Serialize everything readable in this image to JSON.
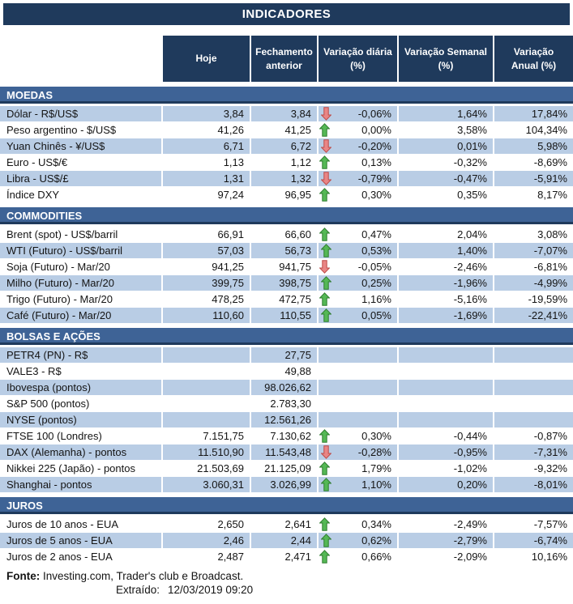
{
  "title": "INDICADORES",
  "columns": [
    "Hoje",
    "Fechamento\nanterior",
    "Variação diária\n(%)",
    "Variação Semanal\n(%)",
    "Variação\nAnual (%)"
  ],
  "sections": [
    {
      "name": "MOEDAS",
      "rows": [
        {
          "label": "Dólar - R$/US$",
          "hoje": "3,84",
          "fechamento": "3,84",
          "arrow": "down",
          "diaria": "-0,06%",
          "semanal": "1,64%",
          "anual": "17,84%"
        },
        {
          "label": "Peso argentino - $/US$",
          "hoje": "41,26",
          "fechamento": "41,25",
          "arrow": "up",
          "diaria": "0,00%",
          "semanal": "3,58%",
          "anual": "104,34%"
        },
        {
          "label": "Yuan Chinês - ¥/US$",
          "hoje": "6,71",
          "fechamento": "6,72",
          "arrow": "down",
          "diaria": "-0,20%",
          "semanal": "0,01%",
          "anual": "5,98%"
        },
        {
          "label": "Euro - US$/€",
          "hoje": "1,13",
          "fechamento": "1,12",
          "arrow": "up",
          "diaria": "0,13%",
          "semanal": "-0,32%",
          "anual": "-8,69%"
        },
        {
          "label": "Libra - US$/£",
          "hoje": "1,31",
          "fechamento": "1,32",
          "arrow": "down",
          "diaria": "-0,79%",
          "semanal": "-0,47%",
          "anual": "-5,91%"
        },
        {
          "label": "Índice DXY",
          "hoje": "97,24",
          "fechamento": "96,95",
          "arrow": "up",
          "diaria": "0,30%",
          "semanal": "0,35%",
          "anual": "8,17%"
        }
      ]
    },
    {
      "name": "COMMODITIES",
      "rows": [
        {
          "label": "Brent (spot) - US$/barril",
          "hoje": "66,91",
          "fechamento": "66,60",
          "arrow": "up",
          "diaria": "0,47%",
          "semanal": "2,04%",
          "anual": "3,08%"
        },
        {
          "label": "WTI (Futuro) - US$/barril",
          "hoje": "57,03",
          "fechamento": "56,73",
          "arrow": "up",
          "diaria": "0,53%",
          "semanal": "1,40%",
          "anual": "-7,07%"
        },
        {
          "label": "Soja (Futuro) - Mar/20",
          "hoje": "941,25",
          "fechamento": "941,75",
          "arrow": "down",
          "diaria": "-0,05%",
          "semanal": "-2,46%",
          "anual": "-6,81%"
        },
        {
          "label": "Milho (Futuro) - Mar/20",
          "hoje": "399,75",
          "fechamento": "398,75",
          "arrow": "up",
          "diaria": "0,25%",
          "semanal": "-1,96%",
          "anual": "-4,99%"
        },
        {
          "label": "Trigo (Futuro) - Mar/20",
          "hoje": "478,25",
          "fechamento": "472,75",
          "arrow": "up",
          "diaria": "1,16%",
          "semanal": "-5,16%",
          "anual": "-19,59%"
        },
        {
          "label": "Café (Futuro) - Mar/20",
          "hoje": "110,60",
          "fechamento": "110,55",
          "arrow": "up",
          "diaria": "0,05%",
          "semanal": "-1,69%",
          "anual": "-22,41%"
        }
      ]
    },
    {
      "name": "BOLSAS E AÇÕES",
      "rows": [
        {
          "label": "PETR4 (PN) - R$",
          "hoje": "",
          "fechamento": "27,75",
          "arrow": null,
          "diaria": "",
          "semanal": "",
          "anual": ""
        },
        {
          "label": "VALE3 - R$",
          "hoje": "",
          "fechamento": "49,88",
          "arrow": null,
          "diaria": "",
          "semanal": "",
          "anual": ""
        },
        {
          "label": "Ibovespa (pontos)",
          "hoje": "",
          "fechamento": "98.026,62",
          "arrow": null,
          "diaria": "",
          "semanal": "",
          "anual": ""
        },
        {
          "label": "S&P 500 (pontos)",
          "hoje": "",
          "fechamento": "2.783,30",
          "arrow": null,
          "diaria": "",
          "semanal": "",
          "anual": ""
        },
        {
          "label": "NYSE (pontos)",
          "hoje": "",
          "fechamento": "12.561,26",
          "arrow": null,
          "diaria": "",
          "semanal": "",
          "anual": ""
        },
        {
          "label": "FTSE 100 (Londres)",
          "hoje": "7.151,75",
          "fechamento": "7.130,62",
          "arrow": "up",
          "diaria": "0,30%",
          "semanal": "-0,44%",
          "anual": "-0,87%"
        },
        {
          "label": "DAX (Alemanha) - pontos",
          "hoje": "11.510,90",
          "fechamento": "11.543,48",
          "arrow": "down",
          "diaria": "-0,28%",
          "semanal": "-0,95%",
          "anual": "-7,31%"
        },
        {
          "label": "Nikkei 225 (Japão) - pontos",
          "hoje": "21.503,69",
          "fechamento": "21.125,09",
          "arrow": "up",
          "diaria": "1,79%",
          "semanal": "-1,02%",
          "anual": "-9,32%"
        },
        {
          "label": "Shanghai - pontos",
          "hoje": "3.060,31",
          "fechamento": "3.026,99",
          "arrow": "up",
          "diaria": "1,10%",
          "semanal": "0,20%",
          "anual": "-8,01%"
        }
      ]
    },
    {
      "name": "JUROS",
      "rows": [
        {
          "label": "Juros de 10 anos - EUA",
          "hoje": "2,650",
          "fechamento": "2,641",
          "arrow": "up",
          "diaria": "0,34%",
          "semanal": "-2,49%",
          "anual": "-7,57%"
        },
        {
          "label": "Juros de 5 anos - EUA",
          "hoje": "2,46",
          "fechamento": "2,44",
          "arrow": "up",
          "diaria": "0,62%",
          "semanal": "-2,79%",
          "anual": "-6,74%"
        },
        {
          "label": "Juros de 2 anos - EUA",
          "hoje": "2,487",
          "fechamento": "2,471",
          "arrow": "up",
          "diaria": "0,66%",
          "semanal": "-2,09%",
          "anual": "10,16%"
        }
      ]
    }
  ],
  "footer": {
    "fonte_label": "Fonte:",
    "fonte_text": " Investing.com, Trader's club e Broadcast.",
    "extraido_label": "Extraído:",
    "extraido_value": "12/03/2019 09:20"
  },
  "colors": {
    "navy": "#1F3A5C",
    "band": "#3E6396",
    "lightrow": "#B9CDE5",
    "arrow_up_fill": "#55B855",
    "arrow_up_stroke": "#2E7D2E",
    "arrow_down_fill": "#E98585",
    "arrow_down_stroke": "#BE4B48"
  }
}
